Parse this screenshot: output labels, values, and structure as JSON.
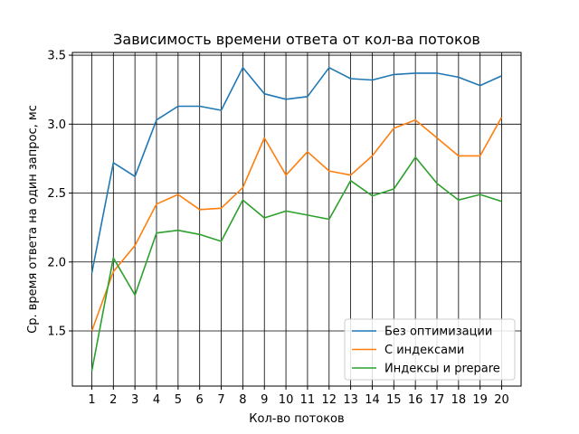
{
  "chart_data": {
    "type": "line",
    "title": "Зависимость времени ответа от кол-ва потоков",
    "xlabel": "Кол-во потоков",
    "ylabel": "Ср. время ответа на один запрос, мс",
    "x": [
      1,
      2,
      3,
      4,
      5,
      6,
      7,
      8,
      9,
      10,
      11,
      12,
      13,
      14,
      15,
      16,
      17,
      18,
      19,
      20
    ],
    "xlim": [
      0.1,
      20.9
    ],
    "ylim": [
      1.1,
      3.52
    ],
    "yticks": [
      "1.5",
      "2.0",
      "2.5",
      "3.0",
      "3.5"
    ],
    "grid": true,
    "legend_position": "lower-right",
    "series": [
      {
        "name": "Без оптимизации",
        "color": "#1f77b4",
        "values": [
          1.92,
          2.72,
          2.62,
          3.03,
          3.13,
          3.13,
          3.1,
          3.41,
          3.22,
          3.18,
          3.2,
          3.41,
          3.33,
          3.32,
          3.36,
          3.37,
          3.37,
          3.34,
          3.28,
          3.35
        ]
      },
      {
        "name": "С индексами",
        "color": "#ff7f0e",
        "values": [
          1.5,
          1.93,
          2.12,
          2.42,
          2.49,
          2.38,
          2.39,
          2.54,
          2.9,
          2.63,
          2.8,
          2.66,
          2.63,
          2.77,
          2.97,
          3.03,
          2.9,
          2.77,
          2.77,
          3.05
        ]
      },
      {
        "name": "Индексы и prepare",
        "color": "#2ca02c",
        "values": [
          1.21,
          2.03,
          1.76,
          2.21,
          2.23,
          2.2,
          2.15,
          2.45,
          2.32,
          2.37,
          2.34,
          2.31,
          2.59,
          2.48,
          2.53,
          2.76,
          2.57,
          2.45,
          2.49,
          2.44
        ]
      }
    ]
  }
}
